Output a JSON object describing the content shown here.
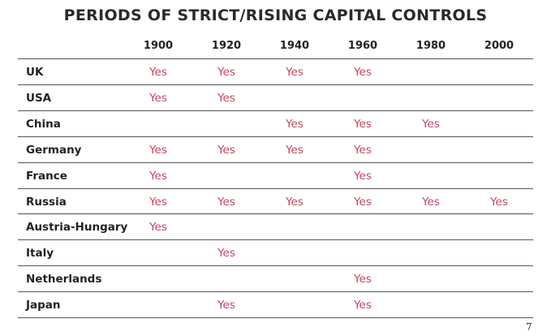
{
  "title": "PERIODS OF STRICT/RISING CAPITAL CONTROLS",
  "table": {
    "columns": [
      "1900",
      "1920",
      "1940",
      "1960",
      "1980",
      "2000"
    ],
    "rows": [
      {
        "country": "UK",
        "cells": [
          "Yes",
          "Yes",
          "Yes",
          "Yes",
          null,
          null
        ]
      },
      {
        "country": "USA",
        "cells": [
          "Yes",
          "Yes",
          null,
          null,
          null,
          null
        ]
      },
      {
        "country": "China",
        "cells": [
          null,
          null,
          "Yes",
          "Yes",
          "Yes",
          null
        ]
      },
      {
        "country": "Germany",
        "cells": [
          "Yes",
          "Yes",
          "Yes",
          "Yes",
          null,
          null
        ]
      },
      {
        "country": "France",
        "cells": [
          "Yes",
          null,
          null,
          "Yes",
          null,
          null
        ]
      },
      {
        "country": "Russia",
        "cells": [
          "Yes",
          "Yes",
          "Yes",
          "Yes",
          "Yes",
          "Yes"
        ]
      },
      {
        "country": "Austria-Hungary",
        "cells": [
          "Yes",
          null,
          null,
          null,
          null,
          null
        ]
      },
      {
        "country": "Italy",
        "cells": [
          null,
          "Yes",
          null,
          null,
          null,
          null
        ]
      },
      {
        "country": "Netherlands",
        "cells": [
          null,
          null,
          null,
          "Yes",
          null,
          null
        ]
      },
      {
        "country": "Japan",
        "cells": [
          null,
          "Yes",
          null,
          "Yes",
          null,
          null
        ]
      }
    ]
  },
  "page_number": "7"
}
